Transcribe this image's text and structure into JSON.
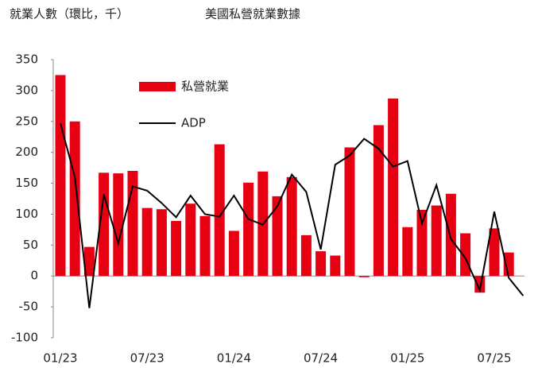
{
  "chart_data": {
    "type": "bar-line",
    "title": "就業人數（環比，千）",
    "subtitle": "美國私營就業數據",
    "categories": [
      "01/23",
      null,
      null,
      null,
      null,
      null,
      "07/23",
      null,
      null,
      null,
      null,
      null,
      "01/24",
      null,
      null,
      null,
      null,
      null,
      "07/24",
      null,
      null,
      null,
      null,
      null,
      "01/25",
      null,
      null,
      null,
      null,
      null,
      "07/25",
      null,
      null
    ],
    "series": [
      {
        "name": "私營就業",
        "type": "bar",
        "color": "#e60012",
        "values": [
          325,
          250,
          47,
          167,
          166,
          170,
          110,
          108,
          89,
          117,
          97,
          213,
          73,
          151,
          169,
          129,
          160,
          66,
          40,
          33,
          208,
          -2,
          244,
          287,
          79,
          107,
          114,
          133,
          69,
          -27,
          77,
          38,
          null
        ]
      },
      {
        "name": "ADP",
        "type": "line",
        "color": "#000000",
        "values": [
          247,
          160,
          -52,
          132,
          53,
          145,
          138,
          118,
          95,
          130,
          100,
          96,
          130,
          92,
          83,
          113,
          164,
          136,
          43,
          180,
          195,
          222,
          206,
          177,
          186,
          85,
          147,
          60,
          29,
          -23,
          104,
          -3,
          -32
        ]
      }
    ],
    "ylim": [
      -100,
      350
    ],
    "yticks": [
      -100,
      -50,
      0,
      50,
      100,
      150,
      200,
      250,
      300,
      350
    ],
    "grid": false
  }
}
